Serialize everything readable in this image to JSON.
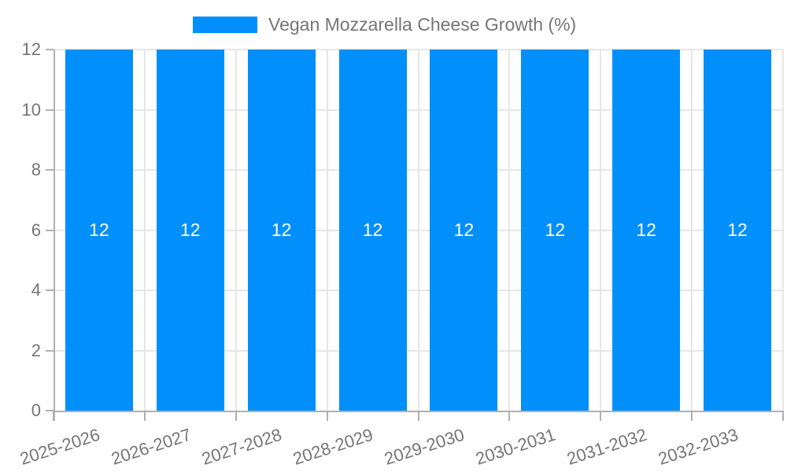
{
  "legend": {
    "label": "Vegan Mozzarella Cheese Growth (%)"
  },
  "chart_data": {
    "type": "bar",
    "title": "Vegan Mozzarella Cheese Growth (%)",
    "categories": [
      "2025-2026",
      "2026-2027",
      "2027-2028",
      "2028-2029",
      "2029-2030",
      "2030-2031",
      "2031-2032",
      "2032-2033"
    ],
    "series": [
      {
        "name": "Vegan Mozzarella Cheese Growth (%)",
        "values": [
          12,
          12,
          12,
          12,
          12,
          12,
          12,
          12
        ]
      }
    ],
    "bar_labels": [
      "12",
      "12",
      "12",
      "12",
      "12",
      "12",
      "12",
      "12"
    ],
    "xlabel": "",
    "ylabel": "",
    "ylim": [
      0,
      12
    ],
    "yticks": [
      0,
      2,
      4,
      6,
      8,
      10,
      12
    ],
    "grid": true,
    "legend_position": "top",
    "colors": {
      "bar": "#008ffb",
      "bar_label": "#ffffff",
      "axis_text": "#757575",
      "grid_line": "#e6e6e6",
      "axis_line": "#b0b0b0",
      "background": "#ffffff"
    }
  }
}
